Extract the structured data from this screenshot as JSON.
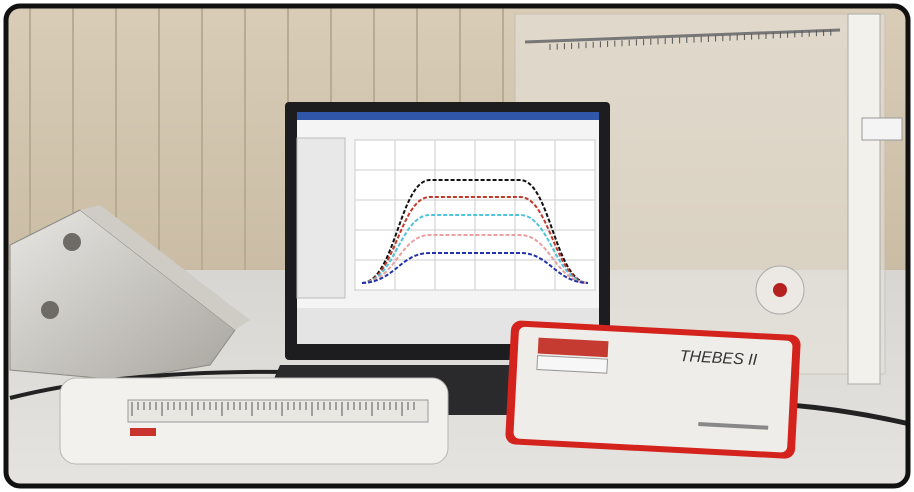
{
  "device": {
    "label": "THEBES II"
  }
}
